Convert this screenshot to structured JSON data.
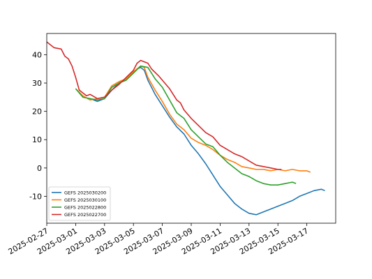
{
  "chart_data": {
    "type": "line",
    "title": "",
    "xlabel": "",
    "ylabel": "",
    "xlim": [
      "2025-02-27",
      "2025-03-19"
    ],
    "ylim": [
      -19.5,
      47.5
    ],
    "grid": false,
    "legend_position": "lower-left",
    "x_tick_labels": [
      "2025-02-27",
      "2025-03-01",
      "2025-03-03",
      "2025-03-05",
      "2025-03-07",
      "2025-03-09",
      "2025-03-11",
      "2025-03-13",
      "2025-03-15",
      "2025-03-17"
    ],
    "y_tick_labels": [
      "-10",
      "0",
      "10",
      "20",
      "30",
      "40"
    ],
    "series": [
      {
        "name": "GEFS 2025030200",
        "color": "#1f77b4",
        "points": [
          [
            "2025-03-02",
            24.5
          ],
          [
            "2025-03-02T12:00",
            23.5
          ],
          [
            "2025-03-03",
            24.5
          ],
          [
            "2025-03-03T12:00",
            27.5
          ],
          [
            "2025-03-04",
            30.0
          ],
          [
            "2025-03-04T12:00",
            31.5
          ],
          [
            "2025-03-05",
            33.5
          ],
          [
            "2025-03-05T06:00",
            35.0
          ],
          [
            "2025-03-05T12:00",
            35.5
          ],
          [
            "2025-03-05T18:00",
            34.5
          ],
          [
            "2025-03-06",
            31.0
          ],
          [
            "2025-03-06T12:00",
            26.0
          ],
          [
            "2025-03-07",
            22.0
          ],
          [
            "2025-03-07T12:00",
            18.0
          ],
          [
            "2025-03-08",
            14.5
          ],
          [
            "2025-03-08T12:00",
            12.0
          ],
          [
            "2025-03-09",
            8.0
          ],
          [
            "2025-03-09T12:00",
            5.0
          ],
          [
            "2025-03-10",
            1.5
          ],
          [
            "2025-03-10T12:00",
            -2.5
          ],
          [
            "2025-03-11",
            -6.5
          ],
          [
            "2025-03-11T12:00",
            -9.5
          ],
          [
            "2025-03-12",
            -12.5
          ],
          [
            "2025-03-12T12:00",
            -14.5
          ],
          [
            "2025-03-13",
            -16.0
          ],
          [
            "2025-03-13T12:00",
            -16.5
          ],
          [
            "2025-03-14",
            -15.5
          ],
          [
            "2025-03-14T12:00",
            -14.5
          ],
          [
            "2025-03-15",
            -13.5
          ],
          [
            "2025-03-15T12:00",
            -12.5
          ],
          [
            "2025-03-16",
            -11.5
          ],
          [
            "2025-03-16T12:00",
            -10.0
          ],
          [
            "2025-03-17",
            -9.0
          ],
          [
            "2025-03-17T12:00",
            -8.0
          ],
          [
            "2025-03-18",
            -7.5
          ],
          [
            "2025-03-18T06:00",
            -8.0
          ]
        ]
      },
      {
        "name": "GEFS 2025030100",
        "color": "#ff7f0e",
        "points": [
          [
            "2025-03-01",
            28.0
          ],
          [
            "2025-03-01T12:00",
            25.5
          ],
          [
            "2025-03-02",
            24.0
          ],
          [
            "2025-03-02T12:00",
            24.5
          ],
          [
            "2025-03-03",
            25.0
          ],
          [
            "2025-03-03T12:00",
            29.0
          ],
          [
            "2025-03-04",
            30.5
          ],
          [
            "2025-03-04T12:00",
            31.5
          ],
          [
            "2025-03-05",
            34.0
          ],
          [
            "2025-03-05T12:00",
            36.0
          ],
          [
            "2025-03-05T18:00",
            35.5
          ],
          [
            "2025-03-06",
            32.0
          ],
          [
            "2025-03-06T12:00",
            27.5
          ],
          [
            "2025-03-07",
            23.5
          ],
          [
            "2025-03-07T12:00",
            19.0
          ],
          [
            "2025-03-08",
            15.5
          ],
          [
            "2025-03-08T12:00",
            13.5
          ],
          [
            "2025-03-09",
            10.5
          ],
          [
            "2025-03-09T12:00",
            9.0
          ],
          [
            "2025-03-10",
            8.0
          ],
          [
            "2025-03-10T12:00",
            6.5
          ],
          [
            "2025-03-11",
            4.5
          ],
          [
            "2025-03-11T12:00",
            3.0
          ],
          [
            "2025-03-12",
            2.0
          ],
          [
            "2025-03-12T12:00",
            0.5
          ],
          [
            "2025-03-13",
            0.0
          ],
          [
            "2025-03-13T12:00",
            -0.5
          ],
          [
            "2025-03-14",
            -0.5
          ],
          [
            "2025-03-14T12:00",
            -1.0
          ],
          [
            "2025-03-15",
            -0.5
          ],
          [
            "2025-03-15T12:00",
            -1.0
          ],
          [
            "2025-03-16",
            -0.5
          ],
          [
            "2025-03-16T12:00",
            -1.0
          ],
          [
            "2025-03-17",
            -1.0
          ],
          [
            "2025-03-17T06:00",
            -1.5
          ]
        ]
      },
      {
        "name": "GEFS 2025022800",
        "color": "#2ca02c",
        "points": [
          [
            "2025-03-01",
            28.0
          ],
          [
            "2025-03-01T12:00",
            25.0
          ],
          [
            "2025-03-02",
            24.5
          ],
          [
            "2025-03-02T12:00",
            24.0
          ],
          [
            "2025-03-03",
            24.5
          ],
          [
            "2025-03-03T12:00",
            28.5
          ],
          [
            "2025-03-04",
            30.0
          ],
          [
            "2025-03-04T12:00",
            31.0
          ],
          [
            "2025-03-05",
            33.5
          ],
          [
            "2025-03-05T12:00",
            36.0
          ],
          [
            "2025-03-06",
            35.5
          ],
          [
            "2025-03-06T12:00",
            31.5
          ],
          [
            "2025-03-07",
            28.5
          ],
          [
            "2025-03-07T12:00",
            24.0
          ],
          [
            "2025-03-08",
            19.5
          ],
          [
            "2025-03-08T12:00",
            17.5
          ],
          [
            "2025-03-09",
            13.5
          ],
          [
            "2025-03-09T12:00",
            11.0
          ],
          [
            "2025-03-10",
            8.5
          ],
          [
            "2025-03-10T12:00",
            7.5
          ],
          [
            "2025-03-11",
            4.5
          ],
          [
            "2025-03-11T12:00",
            2.0
          ],
          [
            "2025-03-12",
            0.0
          ],
          [
            "2025-03-12T12:00",
            -2.0
          ],
          [
            "2025-03-13",
            -3.0
          ],
          [
            "2025-03-13T12:00",
            -4.5
          ],
          [
            "2025-03-14",
            -5.5
          ],
          [
            "2025-03-14T12:00",
            -6.0
          ],
          [
            "2025-03-15",
            -6.0
          ],
          [
            "2025-03-15T12:00",
            -5.5
          ],
          [
            "2025-03-16",
            -5.0
          ],
          [
            "2025-03-16T06:00",
            -5.5
          ]
        ]
      },
      {
        "name": "GEFS 2025022700",
        "color": "#d62728",
        "points": [
          [
            "2025-02-27",
            44.5
          ],
          [
            "2025-02-27T12:00",
            42.5
          ],
          [
            "2025-02-28",
            42.0
          ],
          [
            "2025-02-28T06:00",
            39.5
          ],
          [
            "2025-02-28T12:00",
            38.5
          ],
          [
            "2025-02-28T18:00",
            36.0
          ],
          [
            "2025-03-01",
            32.0
          ],
          [
            "2025-03-01T06:00",
            27.5
          ],
          [
            "2025-03-01T12:00",
            26.5
          ],
          [
            "2025-03-01T18:00",
            25.5
          ],
          [
            "2025-03-02",
            26.0
          ],
          [
            "2025-03-02T12:00",
            24.5
          ],
          [
            "2025-03-03",
            25.0
          ],
          [
            "2025-03-03T12:00",
            27.5
          ],
          [
            "2025-03-04",
            29.5
          ],
          [
            "2025-03-04T12:00",
            32.0
          ],
          [
            "2025-03-05",
            34.5
          ],
          [
            "2025-03-05T06:00",
            37.0
          ],
          [
            "2025-03-05T12:00",
            38.0
          ],
          [
            "2025-03-06",
            37.0
          ],
          [
            "2025-03-06T06:00",
            35.0
          ],
          [
            "2025-03-06T18:00",
            32.5
          ],
          [
            "2025-03-07",
            31.0
          ],
          [
            "2025-03-07T12:00",
            28.0
          ],
          [
            "2025-03-08",
            24.0
          ],
          [
            "2025-03-08T06:00",
            23.0
          ],
          [
            "2025-03-08T12:00",
            20.5
          ],
          [
            "2025-03-09",
            17.5
          ],
          [
            "2025-03-09T12:00",
            15.0
          ],
          [
            "2025-03-10",
            12.5
          ],
          [
            "2025-03-10T12:00",
            11.0
          ],
          [
            "2025-03-11",
            8.0
          ],
          [
            "2025-03-11T12:00",
            6.5
          ],
          [
            "2025-03-12",
            5.0
          ],
          [
            "2025-03-12T12:00",
            4.0
          ],
          [
            "2025-03-13",
            2.5
          ],
          [
            "2025-03-13T12:00",
            1.0
          ],
          [
            "2025-03-14",
            0.5
          ],
          [
            "2025-03-14T12:00",
            0.0
          ],
          [
            "2025-03-15",
            -0.5
          ],
          [
            "2025-03-15T06:00",
            -0.5
          ]
        ]
      }
    ]
  }
}
